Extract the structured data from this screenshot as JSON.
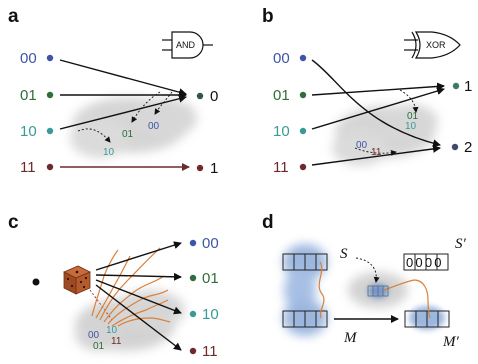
{
  "panels": {
    "a": {
      "label": "a",
      "gate": "AND",
      "inputs": [
        "00",
        "01",
        "10",
        "11"
      ],
      "outputs": [
        "0",
        "1"
      ],
      "blob_labels": [
        "01",
        "00",
        "10"
      ]
    },
    "b": {
      "label": "b",
      "gate": "XOR",
      "inputs": [
        "00",
        "01",
        "10",
        "11"
      ],
      "outputs": [
        "1",
        "2"
      ],
      "blob_labels": [
        "01",
        "10",
        "00",
        "11"
      ]
    },
    "c": {
      "label": "c",
      "outputs": [
        "00",
        "01",
        "10",
        "11"
      ],
      "blob_labels": [
        "00",
        "10",
        "01",
        "11"
      ]
    },
    "d": {
      "label": "d",
      "S": "S",
      "S_prime": "S′",
      "M": "M",
      "M_prime": "M′",
      "register": "0000"
    }
  },
  "colors": {
    "c00": "#3d55a8",
    "c01": "#2e6e3a",
    "c10": "#3a9a96",
    "c11": "#6e2a2a",
    "orange": "#d9803a",
    "blue_blob": "#7b9fd4",
    "gray_blob": "#c8c8c8"
  }
}
